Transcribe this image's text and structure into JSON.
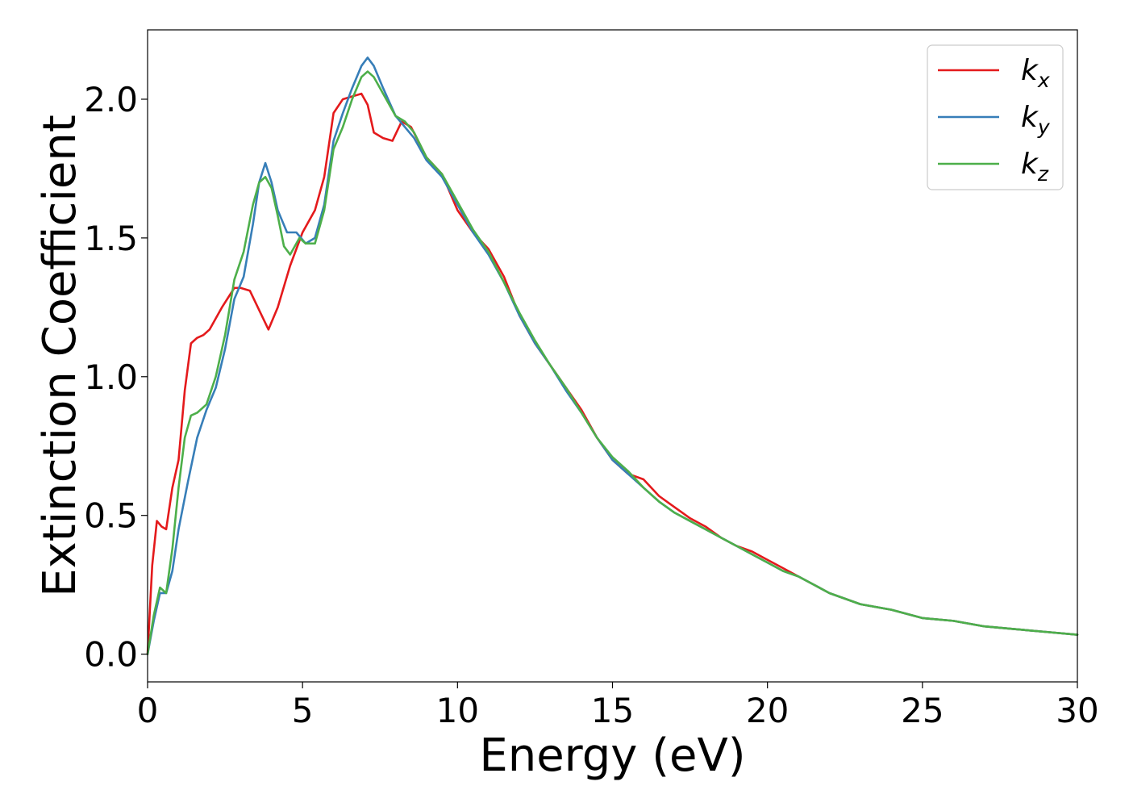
{
  "chart_data": {
    "type": "line",
    "title": "",
    "xlabel": "Energy (eV)",
    "ylabel": "Extinction Coefficient",
    "xlim": [
      0,
      30
    ],
    "ylim": [
      -0.1,
      2.25
    ],
    "xticks": [
      0,
      5,
      10,
      15,
      20,
      25,
      30
    ],
    "xtick_labels": [
      "0",
      "5",
      "10",
      "15",
      "20",
      "25",
      "30"
    ],
    "yticks": [
      0.0,
      0.5,
      1.0,
      1.5,
      2.0
    ],
    "ytick_labels": [
      "0.0",
      "0.5",
      "1.0",
      "1.5",
      "2.0"
    ],
    "grid": false,
    "legend_position": "top-right",
    "series": [
      {
        "name": "k_x",
        "label_base": "k",
        "label_sub": "x",
        "color": "#e41a1c",
        "x": [
          0,
          0.15,
          0.3,
          0.45,
          0.6,
          0.8,
          1.0,
          1.2,
          1.4,
          1.6,
          1.8,
          2.0,
          2.4,
          2.8,
          3.0,
          3.3,
          3.6,
          3.9,
          4.2,
          4.6,
          5.0,
          5.4,
          5.7,
          6.0,
          6.3,
          6.6,
          6.9,
          7.1,
          7.3,
          7.6,
          7.9,
          8.2,
          8.5,
          9.0,
          9.5,
          10.0,
          10.5,
          11.0,
          11.5,
          12.0,
          12.5,
          13.0,
          13.5,
          14.0,
          14.5,
          15.0,
          15.5,
          16.0,
          16.5,
          17.0,
          17.5,
          18.0,
          18.5,
          19.0,
          19.5,
          20.0,
          20.5,
          21.0,
          21.5,
          22.0,
          22.5,
          23.0,
          24.0,
          25.0,
          26.0,
          27.0,
          28.0,
          29.0,
          30.0
        ],
        "y": [
          0.0,
          0.32,
          0.48,
          0.46,
          0.45,
          0.6,
          0.7,
          0.95,
          1.12,
          1.14,
          1.15,
          1.17,
          1.25,
          1.32,
          1.32,
          1.31,
          1.24,
          1.17,
          1.25,
          1.4,
          1.52,
          1.6,
          1.72,
          1.95,
          2.0,
          2.01,
          2.02,
          1.98,
          1.88,
          1.86,
          1.85,
          1.92,
          1.9,
          1.79,
          1.73,
          1.6,
          1.52,
          1.46,
          1.36,
          1.22,
          1.12,
          1.04,
          0.96,
          0.88,
          0.78,
          0.7,
          0.65,
          0.63,
          0.57,
          0.53,
          0.49,
          0.46,
          0.42,
          0.39,
          0.37,
          0.34,
          0.31,
          0.28,
          0.25,
          0.22,
          0.2,
          0.18,
          0.16,
          0.13,
          0.12,
          0.1,
          0.09,
          0.08,
          0.07
        ]
      },
      {
        "name": "k_y",
        "label_base": "k",
        "label_sub": "y",
        "color": "#377eb8",
        "x": [
          0,
          0.2,
          0.4,
          0.6,
          0.8,
          1.0,
          1.3,
          1.6,
          1.9,
          2.2,
          2.5,
          2.8,
          3.1,
          3.4,
          3.6,
          3.8,
          4.0,
          4.2,
          4.5,
          4.8,
          5.1,
          5.4,
          5.7,
          6.0,
          6.3,
          6.6,
          6.9,
          7.1,
          7.3,
          7.6,
          8.0,
          8.3,
          8.6,
          9.0,
          9.5,
          10.0,
          10.5,
          11.0,
          11.5,
          12.0,
          12.5,
          13.0,
          13.5,
          14.0,
          14.5,
          15.0,
          15.5,
          16.0,
          16.5,
          17.0,
          17.5,
          18.0,
          18.5,
          19.0,
          19.5,
          20.0,
          20.5,
          21.0,
          21.5,
          22.0,
          22.5,
          23.0,
          24.0,
          25.0,
          26.0,
          27.0,
          28.0,
          29.0,
          30.0
        ],
        "y": [
          0.0,
          0.12,
          0.22,
          0.22,
          0.3,
          0.45,
          0.62,
          0.78,
          0.88,
          0.96,
          1.1,
          1.28,
          1.36,
          1.55,
          1.7,
          1.77,
          1.7,
          1.6,
          1.52,
          1.52,
          1.48,
          1.5,
          1.62,
          1.85,
          1.95,
          2.04,
          2.12,
          2.15,
          2.12,
          2.04,
          1.94,
          1.9,
          1.86,
          1.78,
          1.72,
          1.62,
          1.52,
          1.44,
          1.34,
          1.22,
          1.12,
          1.04,
          0.95,
          0.87,
          0.78,
          0.7,
          0.65,
          0.6,
          0.55,
          0.51,
          0.48,
          0.45,
          0.42,
          0.39,
          0.36,
          0.33,
          0.3,
          0.28,
          0.25,
          0.22,
          0.2,
          0.18,
          0.16,
          0.13,
          0.12,
          0.1,
          0.09,
          0.08,
          0.07
        ]
      },
      {
        "name": "k_z",
        "label_base": "k",
        "label_sub": "z",
        "color": "#4daf4a",
        "x": [
          0,
          0.2,
          0.4,
          0.6,
          0.8,
          1.0,
          1.2,
          1.4,
          1.6,
          1.9,
          2.2,
          2.5,
          2.8,
          3.1,
          3.4,
          3.6,
          3.8,
          4.0,
          4.2,
          4.4,
          4.6,
          4.9,
          5.1,
          5.4,
          5.7,
          6.0,
          6.3,
          6.6,
          6.9,
          7.1,
          7.3,
          7.6,
          8.0,
          8.3,
          8.6,
          9.0,
          9.5,
          10.0,
          10.5,
          11.0,
          11.5,
          12.0,
          12.5,
          13.0,
          13.5,
          14.0,
          14.5,
          15.0,
          15.5,
          16.0,
          16.5,
          17.0,
          17.5,
          18.0,
          18.5,
          19.0,
          19.5,
          20.0,
          20.5,
          21.0,
          21.5,
          22.0,
          22.5,
          23.0,
          24.0,
          25.0,
          26.0,
          27.0,
          28.0,
          29.0,
          30.0
        ],
        "y": [
          0.0,
          0.14,
          0.24,
          0.22,
          0.38,
          0.6,
          0.78,
          0.86,
          0.87,
          0.9,
          1.0,
          1.15,
          1.35,
          1.45,
          1.62,
          1.7,
          1.72,
          1.68,
          1.58,
          1.47,
          1.44,
          1.5,
          1.48,
          1.48,
          1.6,
          1.82,
          1.9,
          2.0,
          2.08,
          2.1,
          2.08,
          2.02,
          1.94,
          1.92,
          1.88,
          1.79,
          1.73,
          1.63,
          1.53,
          1.45,
          1.34,
          1.23,
          1.13,
          1.04,
          0.96,
          0.87,
          0.78,
          0.71,
          0.66,
          0.6,
          0.55,
          0.51,
          0.48,
          0.45,
          0.42,
          0.39,
          0.36,
          0.33,
          0.3,
          0.28,
          0.25,
          0.22,
          0.2,
          0.18,
          0.16,
          0.13,
          0.12,
          0.1,
          0.09,
          0.08,
          0.07
        ]
      }
    ]
  }
}
